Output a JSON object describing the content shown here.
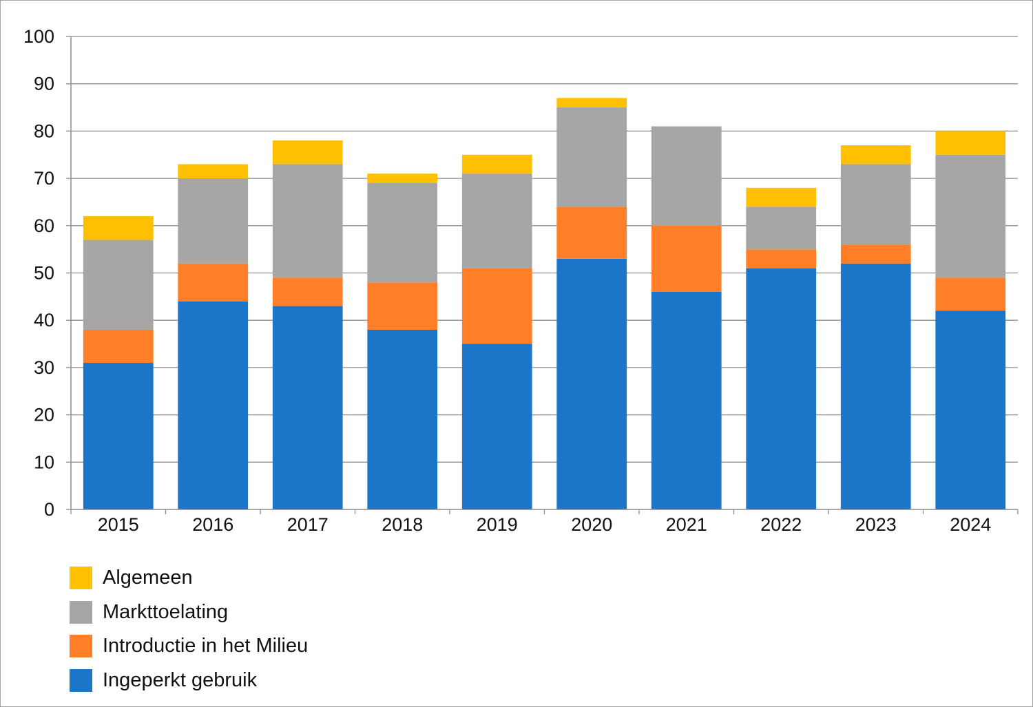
{
  "chart_data": {
    "type": "bar",
    "stacked": true,
    "title": "",
    "xlabel": "",
    "ylabel": "",
    "ylim": [
      0,
      100
    ],
    "yticks": [
      0,
      10,
      20,
      30,
      40,
      50,
      60,
      70,
      80,
      90,
      100
    ],
    "grid": true,
    "legend_position": "bottom-left",
    "categories": [
      "2015",
      "2016",
      "2017",
      "2018",
      "2019",
      "2020",
      "2021",
      "2022",
      "2023",
      "2024"
    ],
    "series": [
      {
        "name": "Ingeperkt gebruik",
        "color": "#1b75c9",
        "values": [
          31,
          44,
          43,
          38,
          35,
          53,
          46,
          51,
          52,
          42
        ]
      },
      {
        "name": "Introductie in het Milieu",
        "color": "#fe7f27",
        "values": [
          7,
          8,
          6,
          10,
          16,
          11,
          14,
          4,
          4,
          7
        ]
      },
      {
        "name": "Markttoelating",
        "color": "#a6a6a6",
        "values": [
          19,
          18,
          24,
          21,
          20,
          21,
          21,
          9,
          17,
          26
        ]
      },
      {
        "name": "Algemeen",
        "color": "#ffc002",
        "values": [
          5,
          3,
          5,
          2,
          4,
          2,
          0,
          4,
          4,
          5
        ]
      }
    ]
  },
  "legend": {
    "items": [
      {
        "label": "Algemeen",
        "color": "#ffc002"
      },
      {
        "label": "Markttoelating",
        "color": "#a6a6a6"
      },
      {
        "label": "Introductie in het Milieu",
        "color": "#fe7f27"
      },
      {
        "label": "Ingeperkt gebruik",
        "color": "#1b75c9"
      }
    ]
  }
}
